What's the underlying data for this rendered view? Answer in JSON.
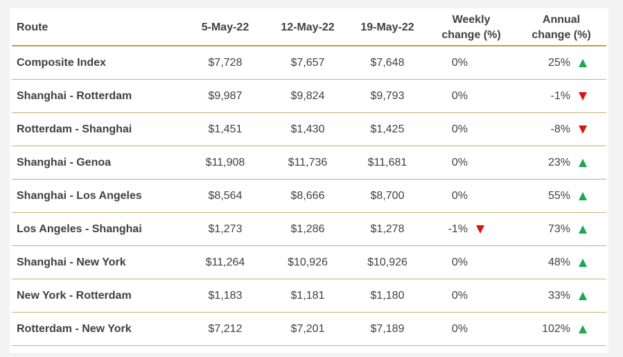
{
  "colors": {
    "border": "#b89e4f",
    "up": "#1aa84a",
    "down": "#e01010"
  },
  "header": {
    "route": "Route",
    "d1": "5-May-22",
    "d2": "12-May-22",
    "d3": "19-May-22",
    "weekly": "Weekly change (%)",
    "annual": "Annual change (%)"
  },
  "rows": [
    {
      "route": "Composite Index",
      "d1": "$7,728",
      "d2": "$7,657",
      "d3": "$7,648",
      "weekly": "0%",
      "weekly_dir": "none",
      "annual": "25%",
      "annual_dir": "up"
    },
    {
      "route": "Shanghai - Rotterdam",
      "d1": "$9,987",
      "d2": "$9,824",
      "d3": "$9,793",
      "weekly": "0%",
      "weekly_dir": "none",
      "annual": "-1%",
      "annual_dir": "down"
    },
    {
      "route": "Rotterdam - Shanghai",
      "d1": "$1,451",
      "d2": "$1,430",
      "d3": "$1,425",
      "weekly": "0%",
      "weekly_dir": "none",
      "annual": "-8%",
      "annual_dir": "down"
    },
    {
      "route": "Shanghai - Genoa",
      "d1": "$11,908",
      "d2": "$11,736",
      "d3": "$11,681",
      "weekly": "0%",
      "weekly_dir": "none",
      "annual": "23%",
      "annual_dir": "up"
    },
    {
      "route": "Shanghai - Los Angeles",
      "d1": "$8,564",
      "d2": "$8,666",
      "d3": "$8,700",
      "weekly": "0%",
      "weekly_dir": "none",
      "annual": "55%",
      "annual_dir": "up"
    },
    {
      "route": "Los Angeles - Shanghai",
      "d1": "$1,273",
      "d2": "$1,286",
      "d3": "$1,278",
      "weekly": "-1%",
      "weekly_dir": "down",
      "annual": "73%",
      "annual_dir": "up"
    },
    {
      "route": "Shanghai - New York",
      "d1": "$11,264",
      "d2": "$10,926",
      "d3": "$10,926",
      "weekly": "0%",
      "weekly_dir": "none",
      "annual": "48%",
      "annual_dir": "up"
    },
    {
      "route": "New York - Rotterdam",
      "d1": "$1,183",
      "d2": "$1,181",
      "d3": "$1,180",
      "weekly": "0%",
      "weekly_dir": "none",
      "annual": "33%",
      "annual_dir": "up"
    },
    {
      "route": "Rotterdam - New York",
      "d1": "$7,212",
      "d2": "$7,201",
      "d3": "$7,189",
      "weekly": "0%",
      "weekly_dir": "none",
      "annual": "102%",
      "annual_dir": "up"
    }
  ]
}
